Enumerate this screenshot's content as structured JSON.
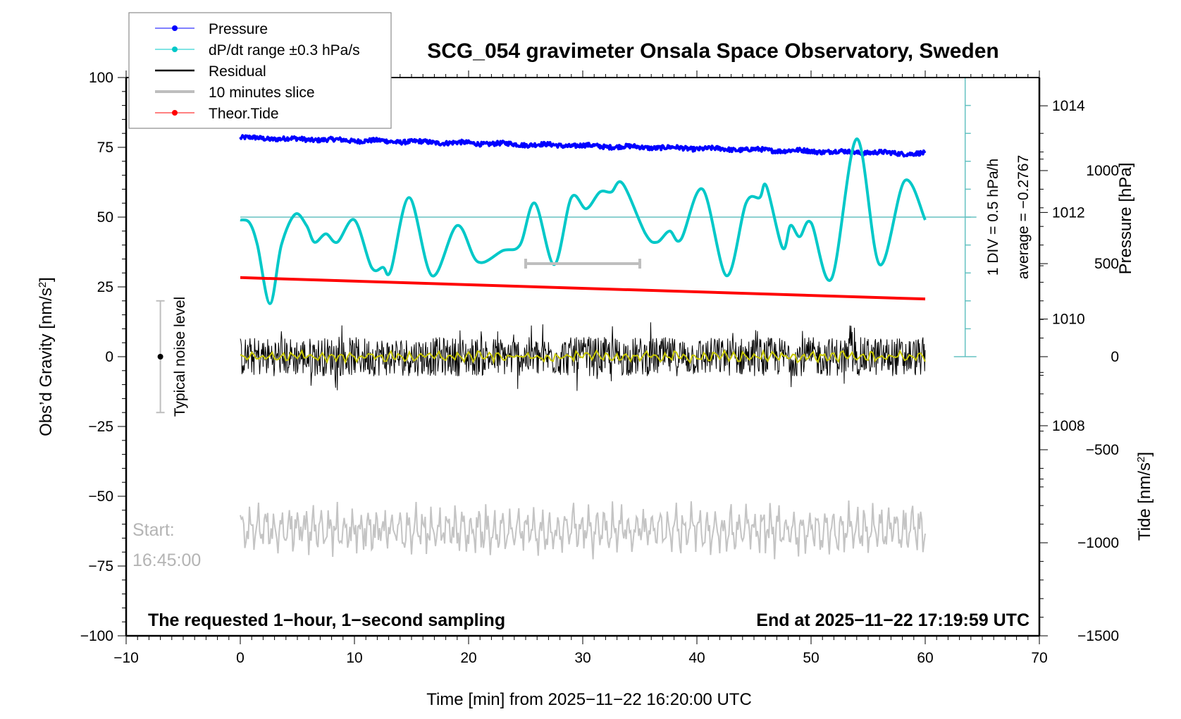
{
  "chart_data": {
    "type": "line",
    "title": "SCG_054 gravimeter Onsala Space Observatory, Sweden",
    "xlabel": "Time [min] from 2025−11−22 16:20:00 UTC",
    "ylabel": "Obs’d Gravity [nm/s²]",
    "ylabel_parts": {
      "main": "Obs’d Gravity [nm/s",
      "sup": "2",
      "end": "]"
    },
    "y2label": "Pressure [hPa]",
    "y3label_parts": {
      "main": "Tide [nm/s",
      "sup": "2",
      "end": "]"
    },
    "xlim": [
      -10,
      70
    ],
    "ylim": [
      -100,
      100
    ],
    "pressure_lim": [
      1004.06,
      1014.53
    ],
    "tide_lim": [
      -1500,
      1500
    ],
    "x_ticks": [
      -10,
      0,
      10,
      20,
      30,
      40,
      50,
      60,
      70
    ],
    "x_tick_labels": [
      "−10",
      "0",
      "10",
      "20",
      "30",
      "40",
      "50",
      "60",
      "70"
    ],
    "y_ticks": [
      100,
      75,
      50,
      25,
      0,
      -25,
      -50,
      -75,
      -100
    ],
    "y_tick_labels": [
      "100",
      "75",
      "50",
      "25",
      "0",
      "−25",
      "−50",
      "−75",
      "−100"
    ],
    "pressure_ticks": [
      1014,
      1012,
      1010,
      1008
    ],
    "pressure_tick_labels": [
      "1014",
      "1012",
      "1010",
      "1008"
    ],
    "tide_ticks": [
      1000,
      500,
      0,
      -500,
      -1000,
      -1500
    ],
    "tide_tick_labels": [
      "1000",
      "500",
      "0",
      "−500",
      "−1000",
      "−1500"
    ],
    "legend": {
      "position": "top-left",
      "entries": [
        {
          "label": "Pressure",
          "color": "#0000ff",
          "marker": "dot"
        },
        {
          "label": "dP/dt range ±0.3 hPa/s",
          "color": "#00c8c8",
          "marker": "dot"
        },
        {
          "label": "Residual",
          "color": "#000000",
          "marker": "line"
        },
        {
          "label": "10 minutes slice",
          "color": "#bebebe",
          "marker": "line"
        },
        {
          "label": "Theor.Tide",
          "color": "#ff0000",
          "marker": "dot"
        }
      ]
    },
    "series": [
      {
        "name": "Pressure",
        "axis": "pressure",
        "color": "#0000ff",
        "start_hPa": 1013.4,
        "end_hPa": 1013.1,
        "t_range": [
          0,
          60
        ]
      },
      {
        "name": "dP/dt",
        "axis": "gravity-offset",
        "color": "#00c8c8",
        "points": [
          [
            0,
            49
          ],
          [
            0.8,
            48
          ],
          [
            1.5,
            40
          ],
          [
            2.6,
            19
          ],
          [
            3.6,
            40
          ],
          [
            4.8,
            51
          ],
          [
            5.8,
            47
          ],
          [
            6.5,
            41
          ],
          [
            7.5,
            44
          ],
          [
            8.5,
            41
          ],
          [
            10,
            49
          ],
          [
            11.5,
            32
          ],
          [
            12.5,
            32
          ],
          [
            13.2,
            31
          ],
          [
            14.8,
            57
          ],
          [
            16.8,
            29
          ],
          [
            19,
            47
          ],
          [
            20.8,
            34
          ],
          [
            23,
            38
          ],
          [
            24.5,
            40
          ],
          [
            25.8,
            55
          ],
          [
            27.5,
            33
          ],
          [
            29,
            57
          ],
          [
            30.3,
            53
          ],
          [
            31.5,
            59
          ],
          [
            32.5,
            59
          ],
          [
            33.5,
            62
          ],
          [
            35.5,
            44
          ],
          [
            36.5,
            41
          ],
          [
            37.6,
            45
          ],
          [
            38.6,
            42
          ],
          [
            40.5,
            60
          ],
          [
            42.6,
            29
          ],
          [
            44.3,
            55
          ],
          [
            45.5,
            57
          ],
          [
            46.1,
            61
          ],
          [
            47.5,
            39
          ],
          [
            48.2,
            47
          ],
          [
            49,
            43
          ],
          [
            50,
            48
          ],
          [
            51.8,
            28
          ],
          [
            54,
            78
          ],
          [
            56,
            33
          ],
          [
            58.2,
            63
          ],
          [
            60,
            49
          ]
        ]
      },
      {
        "name": "Residual",
        "axis": "gravity",
        "color": "#000000",
        "center": 0,
        "amplitude": 10,
        "t_range": [
          0,
          60
        ]
      },
      {
        "name": "Residual smoothed",
        "axis": "gravity",
        "color": "#c8c800",
        "center": 0,
        "amplitude": 2
      },
      {
        "name": "10 minutes slice",
        "axis": "gravity",
        "color": "#bebebe",
        "center": -62,
        "amplitude": 9,
        "t_range": [
          0,
          60
        ]
      },
      {
        "name": "Theor.Tide",
        "axis": "tide",
        "color": "#ff0000",
        "start": 425,
        "end": 310,
        "t_range": [
          0,
          60
        ]
      }
    ],
    "dpdt_axis": {
      "t": 63.5,
      "center_gravity": 50,
      "range_gravity": [
        0,
        100
      ],
      "divisions": 10
    },
    "dpdt_reference_line": 50,
    "slice_marker": {
      "t_start": 25,
      "t_end": 35,
      "tide_value": 500
    },
    "noise_level": {
      "t": -7,
      "center": 0,
      "half_range": 20,
      "label": "Typical noise level"
    },
    "annotations": {
      "div": "1 DIV = 0.5 hPa/h",
      "average": "average = −0.2767",
      "start_label": "Start:",
      "start_time": "16:45:00",
      "bottom_left": "The requested 1−hour, 1−second sampling",
      "bottom_right": "End at 2025−11−22 17:19:59 UTC"
    }
  }
}
